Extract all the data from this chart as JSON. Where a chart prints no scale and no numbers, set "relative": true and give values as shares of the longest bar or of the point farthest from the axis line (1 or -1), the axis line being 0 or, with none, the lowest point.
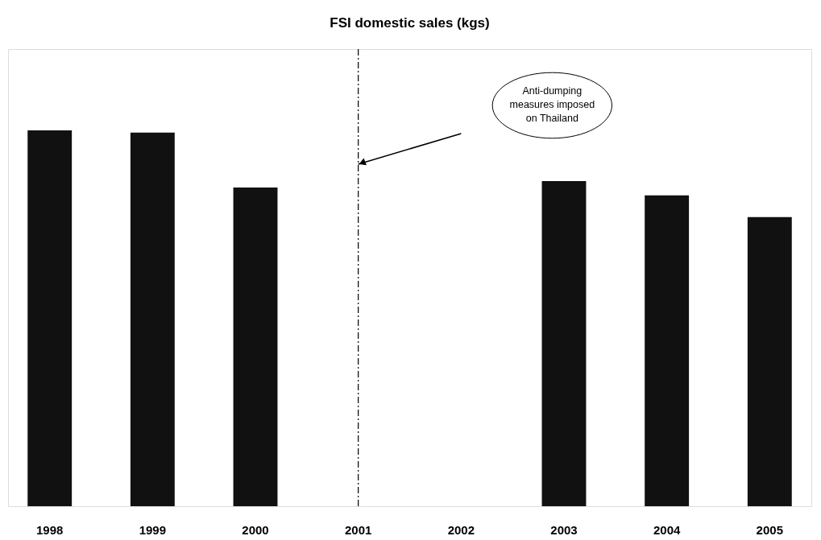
{
  "chart_data": {
    "type": "bar",
    "title": "FSI domestic sales (kgs)",
    "relative": true,
    "categories": [
      "1998",
      "1999",
      "2000",
      "2001",
      "2002",
      "2003",
      "2004",
      "2005"
    ],
    "series": [
      {
        "color": "#111111",
        "values": [
          1,
          0.994,
          0.848,
          null,
          null,
          0.865,
          0.827,
          0.769
        ]
      }
    ],
    "ref_lines": [
      {
        "axis": "x",
        "value": "2001",
        "line_style": "dashdot",
        "color": "#000000"
      }
    ],
    "annotations": [
      "Anti-dumping measures imposed on Thailand"
    ],
    "grid": false,
    "legend": false
  }
}
